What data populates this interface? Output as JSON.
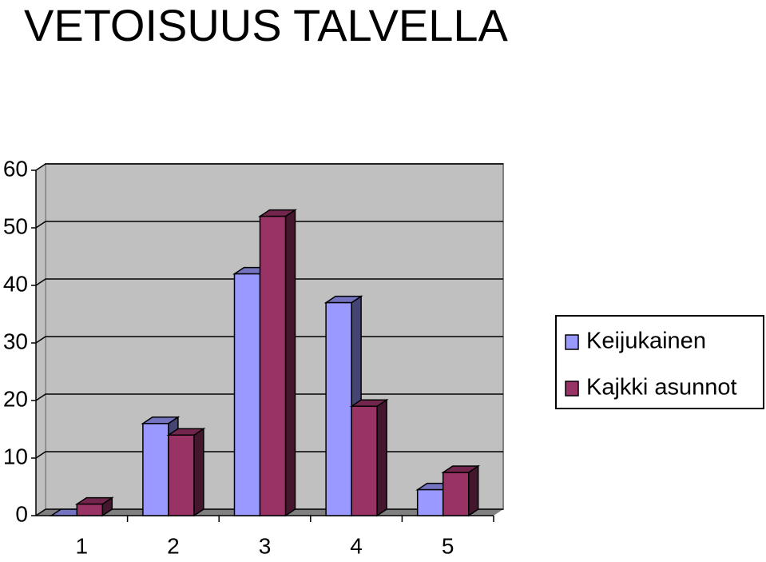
{
  "chart_data": {
    "type": "bar",
    "title": "VETOISUUS TALVELLA",
    "categories": [
      "1",
      "2",
      "3",
      "4",
      "5"
    ],
    "series": [
      {
        "name": "Keijukainen",
        "color": "#9999ff",
        "values": [
          0,
          16,
          42,
          37,
          4.5
        ]
      },
      {
        "name": "Kajkki asunnot",
        "color": "#993366",
        "values": [
          2,
          14,
          52,
          19,
          7.5
        ]
      }
    ],
    "ylim": [
      0,
      60
    ],
    "yticks": [
      0,
      10,
      20,
      30,
      40,
      50,
      60
    ],
    "grid": true,
    "legend": "right"
  }
}
